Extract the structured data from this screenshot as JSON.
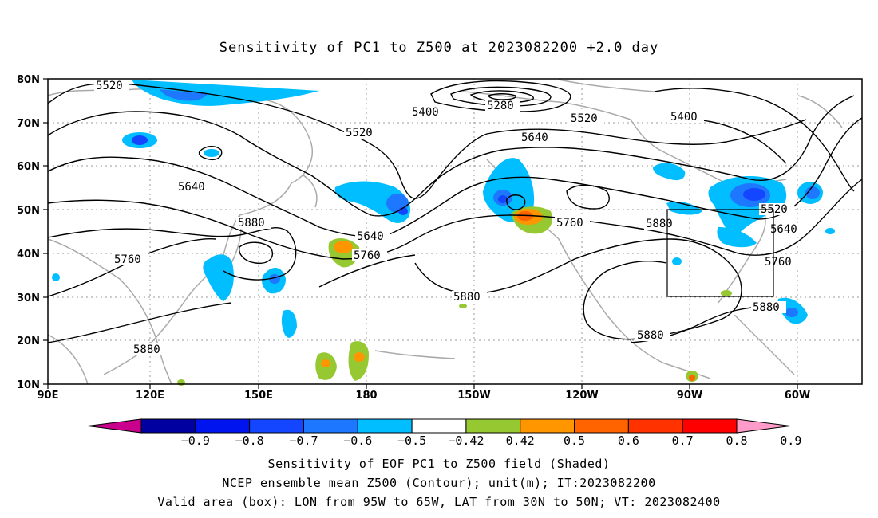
{
  "title": "Sensitivity of PC1 to Z500 at 2023082200 +2.0 day",
  "map": {
    "lat_labels": [
      "80N",
      "70N",
      "60N",
      "50N",
      "40N",
      "30N",
      "20N",
      "10N"
    ],
    "lon_labels": [
      "90E",
      "120E",
      "150E",
      "180",
      "150W",
      "120W",
      "90W",
      "60W"
    ],
    "contour_labels": [
      "5520",
      "5280",
      "5400",
      "5520",
      "5520",
      "5400",
      "5640",
      "5640",
      "5880",
      "5640",
      "5760",
      "5760",
      "5760",
      "5880",
      "5880",
      "5520",
      "5640",
      "5760",
      "5880",
      "5880",
      "5880"
    ],
    "box_label": "Valid area (box)",
    "colors": {
      "land": "#aaaaaa",
      "contour": "#000000",
      "grid": "#888888"
    }
  },
  "colorbar": {
    "labels": [
      "-0.9",
      "-0.8",
      "-0.7",
      "-0.6",
      "-0.5",
      "-0.42",
      "0.42",
      "0.5",
      "0.6",
      "0.7",
      "0.8",
      "0.9"
    ],
    "colors": [
      "#c8008c",
      "#0000a0",
      "#0014f0",
      "#1446ff",
      "#1e78ff",
      "#00beff",
      "#ffffff",
      "#96c832",
      "#ff9600",
      "#ff6400",
      "#ff3200",
      "#ff0000",
      "#ff9bc8"
    ]
  },
  "captions": [
    "Sensitivity of EOF PC1 to Z500 field (Shaded)",
    "NCEP ensemble mean Z500 (Contour); unit(m); IT:2023082200",
    "Valid area (box): LON from 95W to 65W, LAT from 30N to 50N; VT: 2023082400"
  ]
}
